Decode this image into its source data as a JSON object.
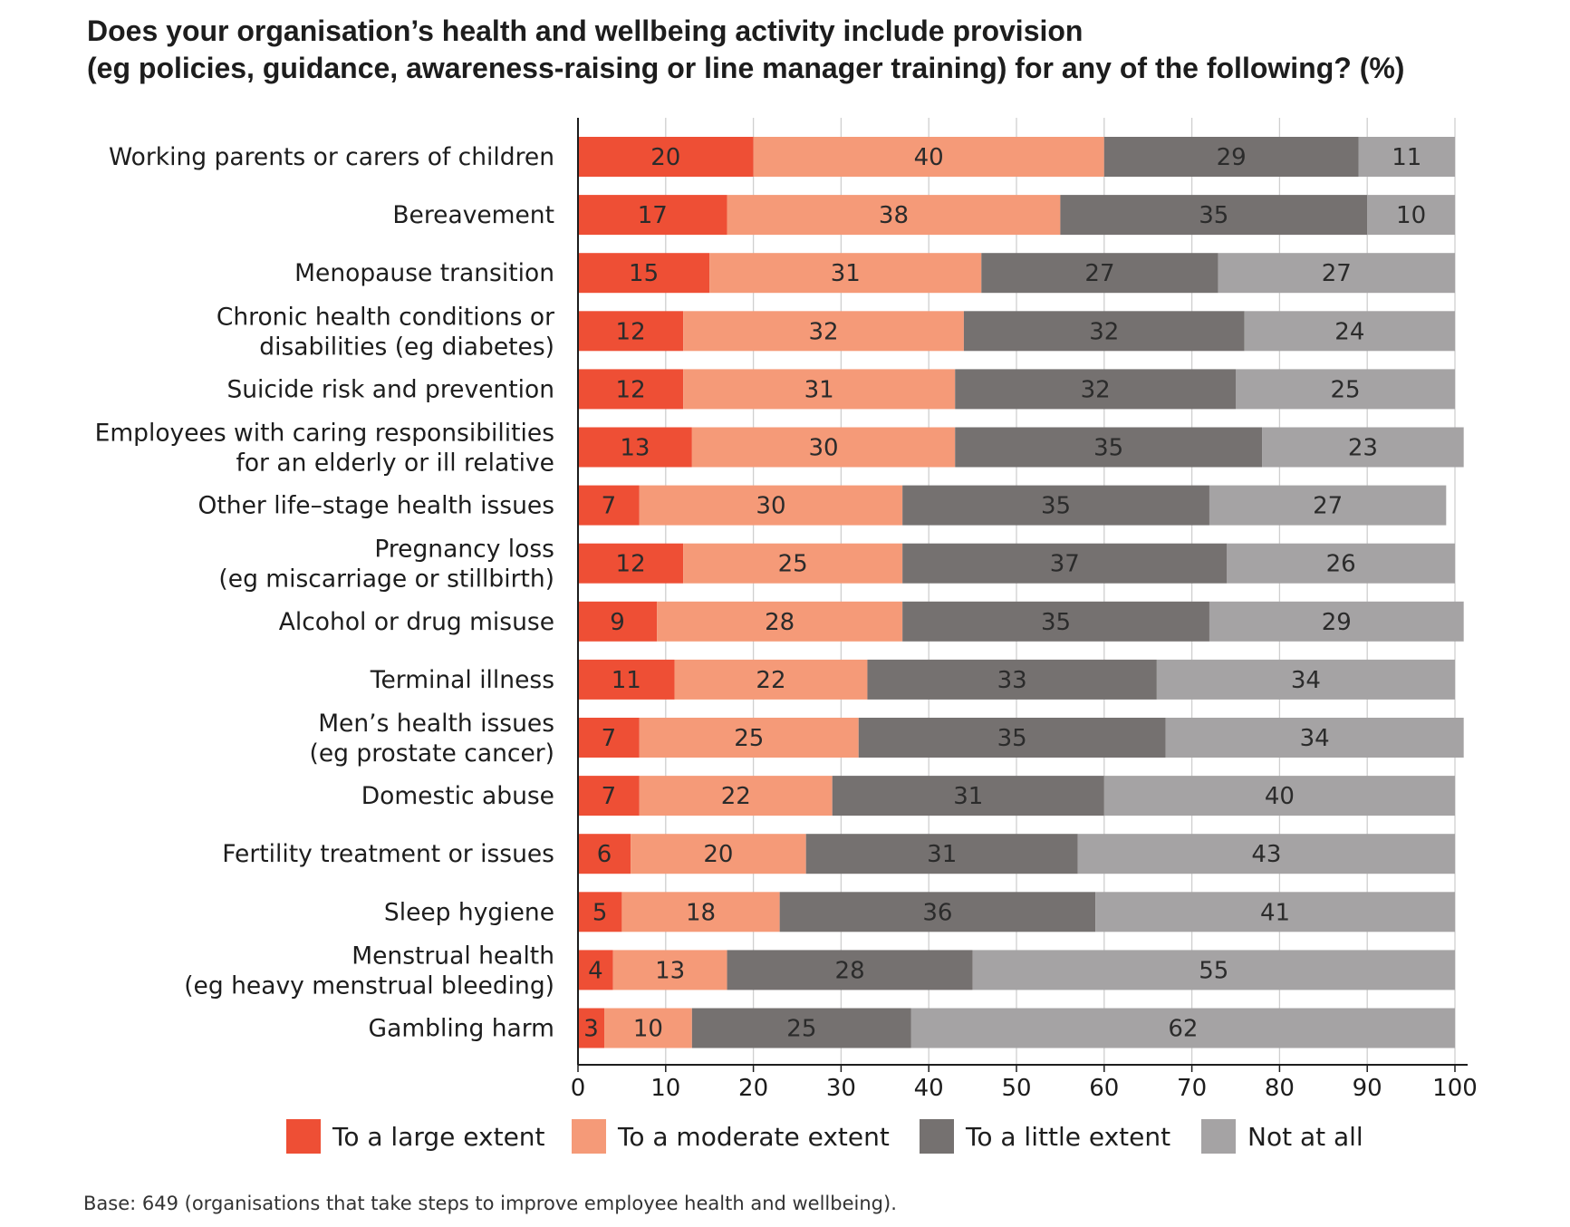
{
  "chart_data": {
    "type": "bar",
    "orientation": "horizontal",
    "stacked": true,
    "title_lines": [
      "Does your organisation’s health and wellbeing activity include provision",
      "(eg policies, guidance, awareness-raising or line manager training) for any of the following? (%)"
    ],
    "categories": [
      [
        "Working parents or carers of children"
      ],
      [
        "Bereavement"
      ],
      [
        "Menopause transition"
      ],
      [
        "Chronic health conditions or",
        "disabilities (eg diabetes)"
      ],
      [
        "Suicide risk and prevention"
      ],
      [
        "Employees with caring responsibilities",
        "for an elderly or ill relative"
      ],
      [
        "Other life–stage health issues"
      ],
      [
        "Pregnancy loss",
        "(eg miscarriage or stillbirth)"
      ],
      [
        "Alcohol or drug misuse"
      ],
      [
        "Terminal illness"
      ],
      [
        "Men’s health issues",
        "(eg prostate cancer)"
      ],
      [
        "Domestic abuse"
      ],
      [
        "Fertility treatment or issues"
      ],
      [
        "Sleep hygiene"
      ],
      [
        "Menstrual health",
        "(eg heavy menstrual bleeding)"
      ],
      [
        "Gambling harm"
      ]
    ],
    "series": [
      {
        "name": "To a large extent",
        "color": "#ee4f35",
        "values": [
          20,
          17,
          15,
          12,
          12,
          13,
          7,
          12,
          9,
          11,
          7,
          7,
          6,
          5,
          4,
          3
        ]
      },
      {
        "name": "To a moderate extent",
        "color": "#f59a78",
        "values": [
          40,
          38,
          31,
          32,
          31,
          30,
          30,
          25,
          28,
          22,
          25,
          22,
          20,
          18,
          13,
          10
        ]
      },
      {
        "name": "To a little extent",
        "color": "#757170",
        "values": [
          29,
          35,
          27,
          32,
          32,
          35,
          35,
          37,
          35,
          33,
          35,
          31,
          31,
          36,
          28,
          25
        ]
      },
      {
        "name": "Not at all",
        "color": "#a5a3a4",
        "values": [
          11,
          10,
          27,
          24,
          25,
          23,
          27,
          26,
          29,
          34,
          34,
          40,
          43,
          41,
          55,
          62
        ]
      }
    ],
    "xlim": [
      0,
      100
    ],
    "xticks": [
      0,
      10,
      20,
      30,
      40,
      50,
      60,
      70,
      80,
      90,
      100
    ],
    "grid": true,
    "legend_position": "bottom",
    "note": "Base: 649 (organisations that take steps to improve employee health and wellbeing)."
  }
}
